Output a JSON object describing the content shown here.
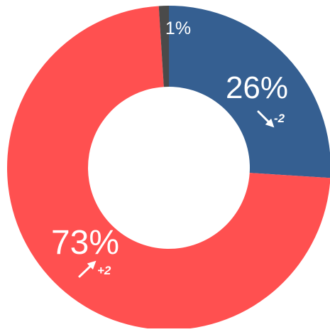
{
  "chart_data": {
    "type": "pie",
    "variant": "donut",
    "slices": [
      {
        "label": "26%",
        "value": 26,
        "color": "#355f91",
        "change": "-2",
        "trend": "down"
      },
      {
        "label": "73%",
        "value": 73,
        "color": "#ff5050",
        "change": "+2",
        "trend": "up"
      },
      {
        "label": "1%",
        "value": 1,
        "color": "#4a4a4a",
        "change": "",
        "trend": ""
      }
    ],
    "start": "top",
    "direction": "clockwise",
    "legend": "none",
    "label_color": "#ffffff"
  }
}
